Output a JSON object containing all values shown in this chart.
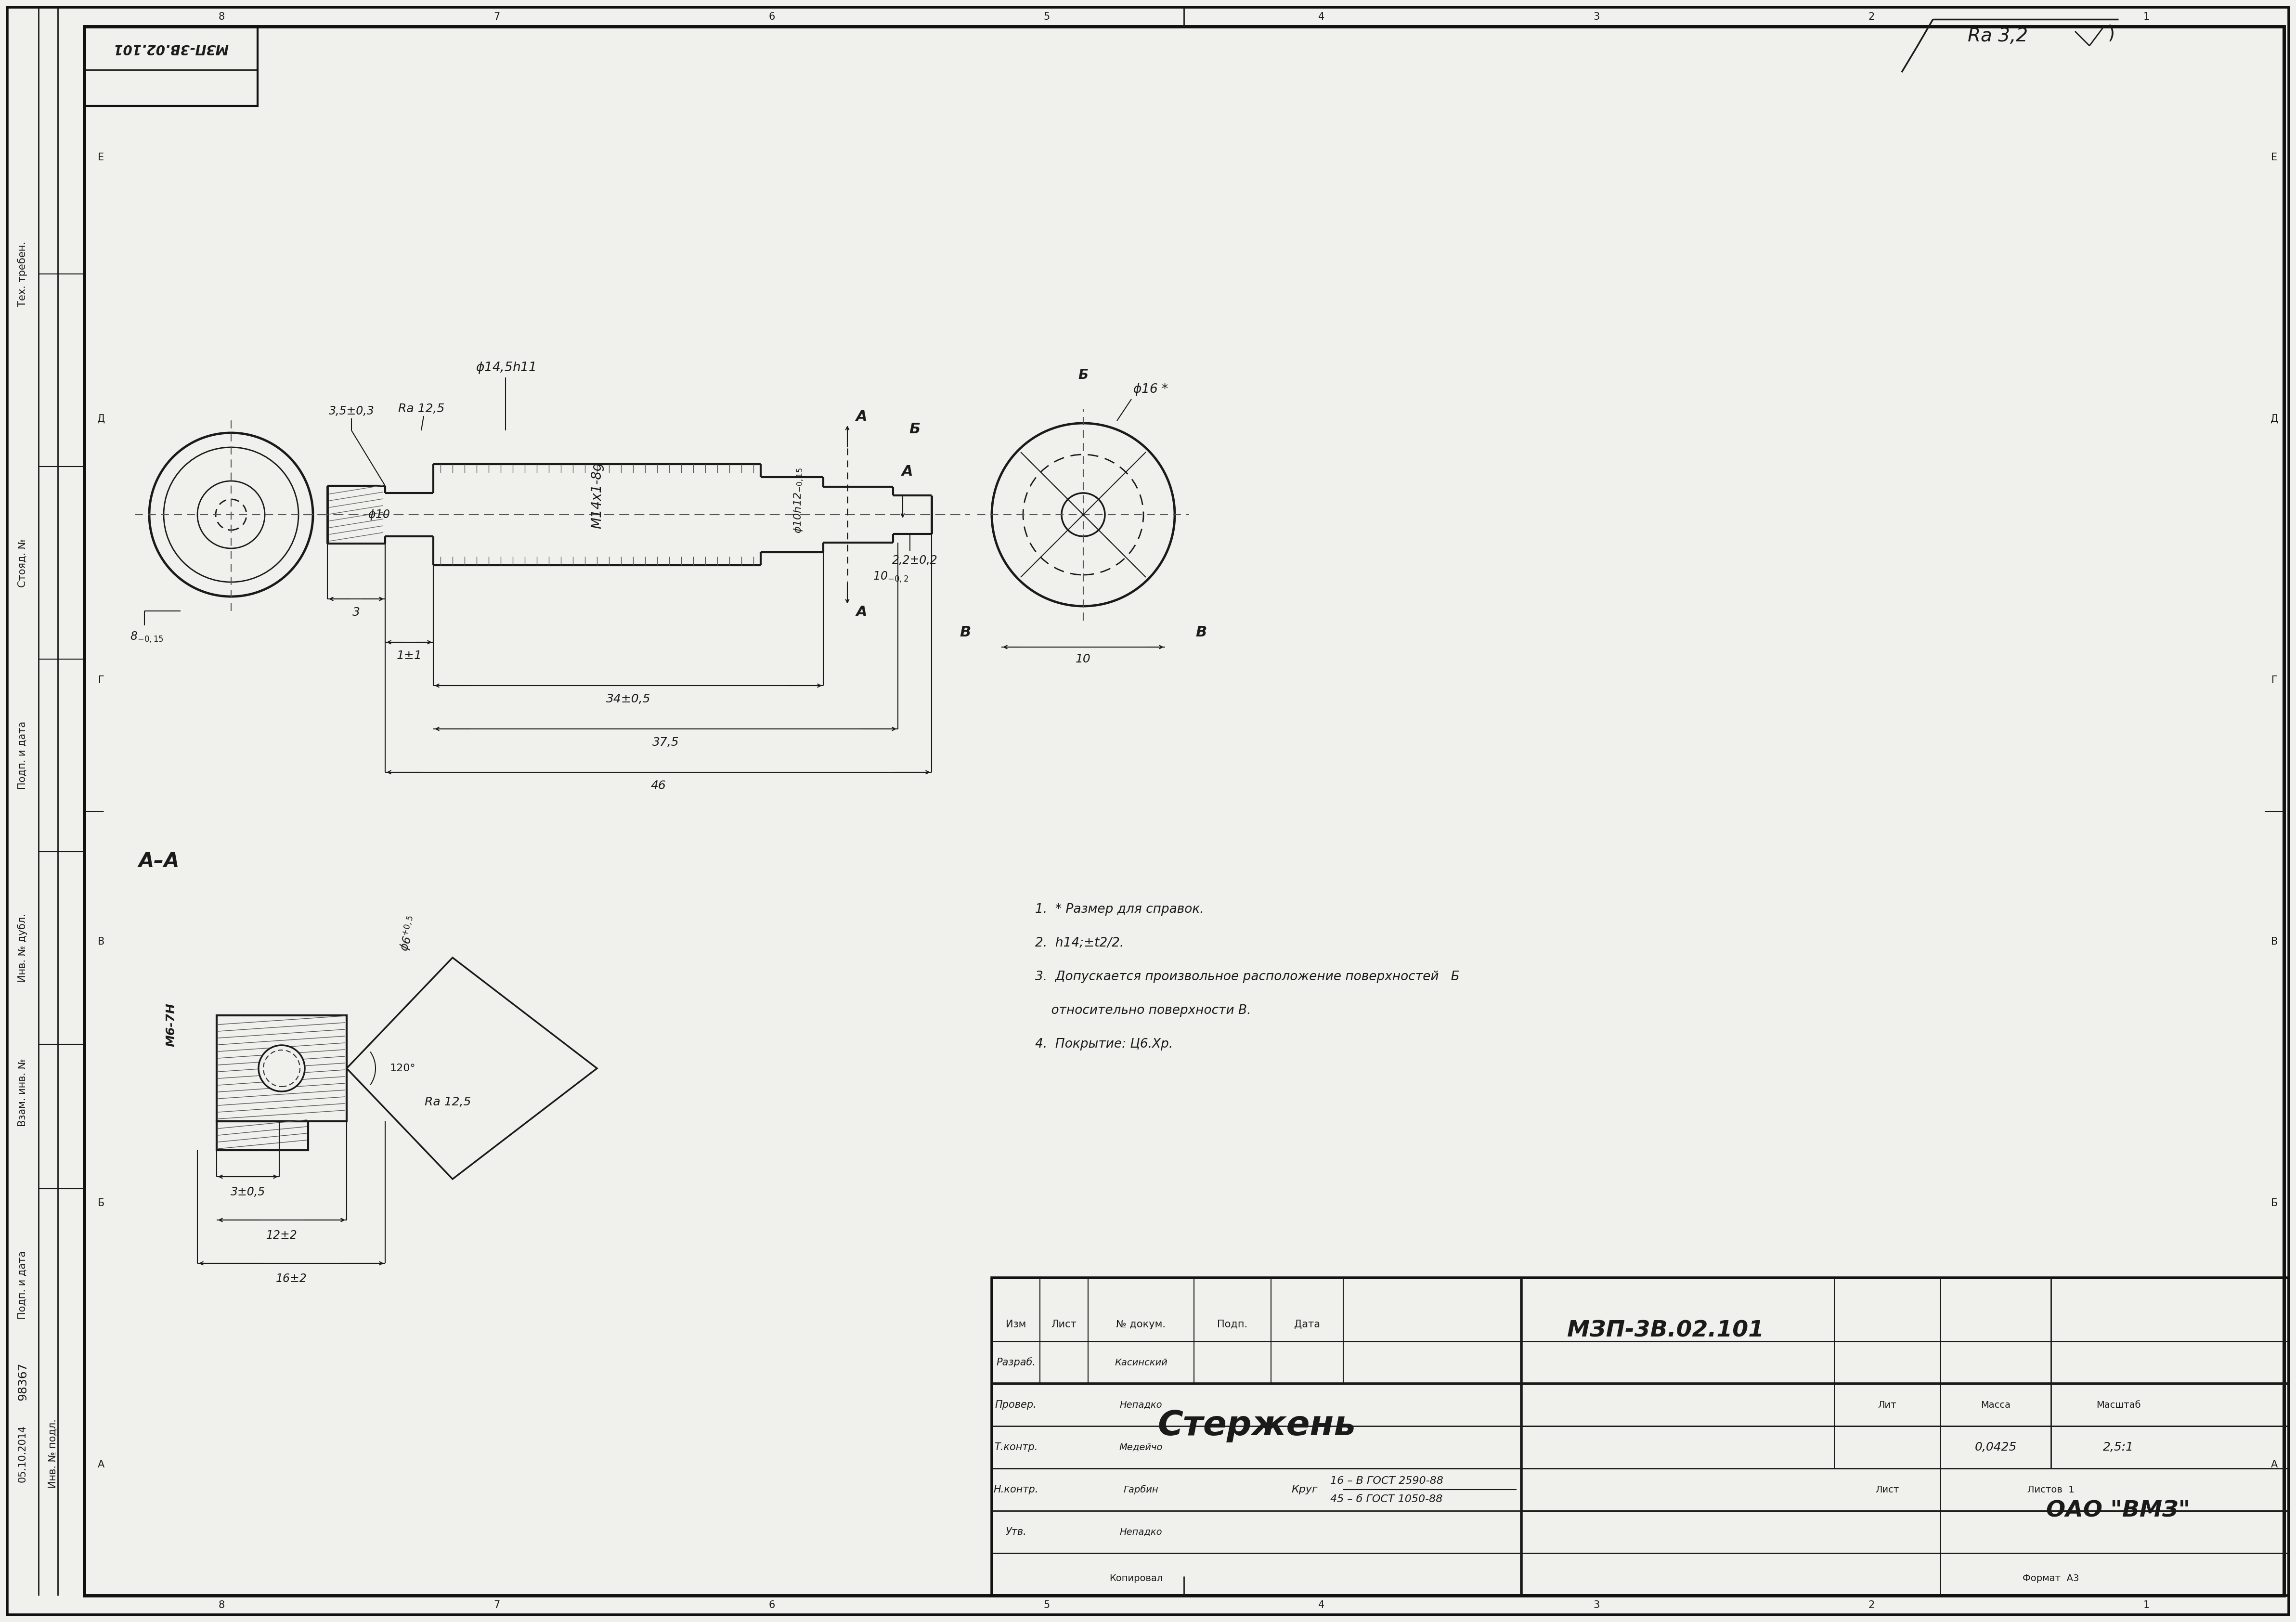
{
  "bg_color": "#f0f0ec",
  "line_color": "#000000",
  "drawing_number": "МЗП-3В.02.101",
  "part_name": "Стержень",
  "mass": "0,0425",
  "scale": "2,5:1",
  "material_top": "16 – В ГОСТ 2590-88",
  "material_bottom": "45 – б ГОСТ 1050-88",
  "material_prefix": "Круг",
  "organization": "ОАО \"ВМЗ\"",
  "notes": [
    "1.  * Размер для справок.",
    "2.  h14;±t2/2.",
    "3.  Допускается произвольное расположение поверхностей   Б",
    "    относительно поверхности В.",
    "4.  Покрытие: Ц6.Хр."
  ],
  "col_labels": [
    "Изм",
    "Лист",
    "№ докум.",
    "Подп.",
    "Дата"
  ],
  "row_labels": [
    "Разраб.",
    "Провер.",
    "Т.контр.",
    "Н.контр.",
    "Утв."
  ],
  "people": [
    "Касинский",
    "Непадко",
    "Медейчо",
    "Гарбин",
    "Непадко"
  ],
  "stamp_number": "98367",
  "date_stamp": "05.10.2014"
}
